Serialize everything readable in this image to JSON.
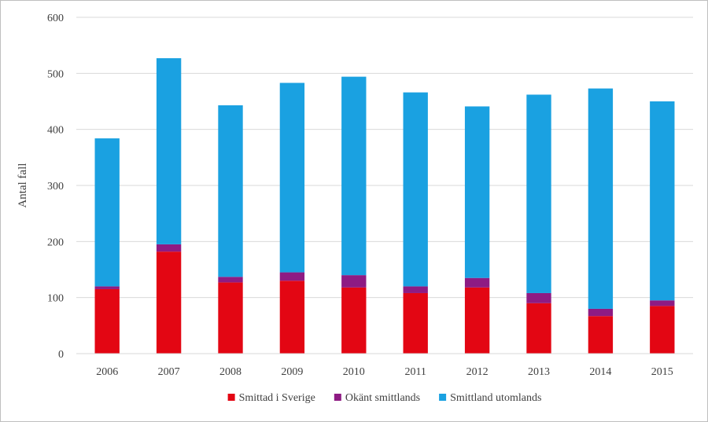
{
  "chart_data": {
    "type": "bar",
    "stacked": true,
    "title": "",
    "xlabel": "",
    "ylabel": "Antal fall",
    "ylim": [
      0,
      600
    ],
    "yticks": [
      0,
      100,
      200,
      300,
      400,
      500,
      600
    ],
    "grid": true,
    "legend_position": "bottom",
    "categories": [
      "2006",
      "2007",
      "2008",
      "2009",
      "2010",
      "2011",
      "2012",
      "2013",
      "2014",
      "2015"
    ],
    "series": [
      {
        "name": "Smittad i Sverige",
        "color": "#e30613",
        "values": [
          115,
          182,
          127,
          130,
          118,
          108,
          118,
          90,
          67,
          85
        ]
      },
      {
        "name": "Okänt smittlands",
        "color": "#8e1b83",
        "values": [
          5,
          13,
          10,
          15,
          22,
          12,
          17,
          18,
          13,
          10
        ]
      },
      {
        "name": "Smittland utomlands",
        "color": "#1aa1e1",
        "values": [
          264,
          332,
          306,
          338,
          354,
          346,
          306,
          354,
          393,
          355
        ]
      }
    ]
  }
}
